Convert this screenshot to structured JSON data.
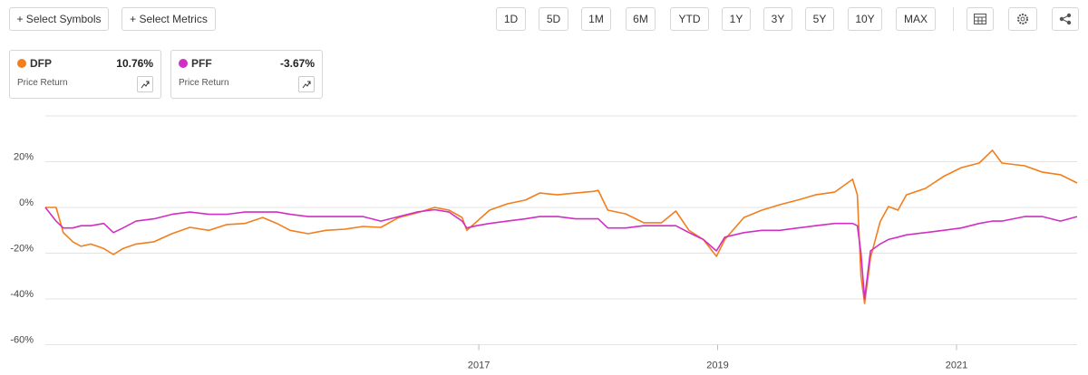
{
  "toolbar": {
    "left": [
      "+ Select Symbols",
      "+ Select Metrics"
    ],
    "ranges": [
      "1D",
      "5D",
      "1M",
      "6M",
      "YTD",
      "1Y",
      "3Y",
      "5Y",
      "10Y",
      "MAX"
    ]
  },
  "symbols": [
    {
      "return": "10.76%",
      "metric": "Price Return"
    },
    {
      "return": "-3.67%",
      "metric": "Price Return"
    }
  ],
  "chart_data": {
    "type": "line",
    "x": [
      2013.37,
      2013.46,
      2013.52,
      2013.6,
      2013.67,
      2013.75,
      2013.86,
      2013.94,
      2014.02,
      2014.13,
      2014.28,
      2014.43,
      2014.58,
      2014.74,
      2014.89,
      2015.04,
      2015.19,
      2015.31,
      2015.42,
      2015.57,
      2015.72,
      2015.88,
      2016.03,
      2016.18,
      2016.33,
      2016.48,
      2016.63,
      2016.75,
      2016.86,
      2016.9,
      2016.98,
      2017.09,
      2017.24,
      2017.39,
      2017.51,
      2017.66,
      2017.81,
      2017.96,
      2018.0,
      2018.08,
      2018.23,
      2018.38,
      2018.53,
      2018.65,
      2018.76,
      2018.88,
      2018.99,
      2019.06,
      2019.22,
      2019.37,
      2019.52,
      2019.67,
      2019.82,
      2019.98,
      2020.13,
      2020.17,
      2020.2,
      2020.23,
      2020.28,
      2020.36,
      2020.43,
      2020.51,
      2020.58,
      2020.74,
      2020.89,
      2021.04,
      2021.19,
      2021.3,
      2021.38,
      2021.57,
      2021.72,
      2021.87,
      2022.01
    ],
    "series": [
      {
        "name": "DFP",
        "color": "#f27e1d",
        "values": [
          0,
          0,
          -11,
          -15,
          -17,
          -16,
          -18,
          -20.6,
          -18,
          -16,
          -15,
          -11.5,
          -8.7,
          -10,
          -7.5,
          -7,
          -4.4,
          -7,
          -10,
          -11.5,
          -10,
          -9.5,
          -8.3,
          -8.7,
          -4.4,
          -2.4,
          0,
          -1.2,
          -4.4,
          -10,
          -6.3,
          -1.2,
          1.6,
          3.2,
          6.3,
          5.5,
          6.3,
          7,
          7.5,
          -1.2,
          -2.8,
          -6.7,
          -6.7,
          -1.6,
          -10,
          -14,
          -21.4,
          -14,
          -4.4,
          -1.2,
          1.2,
          3.2,
          5.5,
          6.7,
          12.3,
          5.5,
          -30,
          -42,
          -22,
          -6.3,
          0.4,
          -1.2,
          5.5,
          8.3,
          13.5,
          17.4,
          19.4,
          25,
          19.4,
          18.2,
          15.4,
          14.3,
          10.7
        ]
      },
      {
        "name": "PFF",
        "color": "#d12fc4",
        "values": [
          0,
          -6,
          -9,
          -9,
          -8,
          -8,
          -7,
          -11,
          -9,
          -6,
          -5,
          -3,
          -2,
          -3,
          -3,
          -2,
          -2,
          -2,
          -3,
          -4,
          -4,
          -4,
          -4,
          -6,
          -4,
          -2,
          -1,
          -2,
          -6,
          -9,
          -8,
          -7,
          -6,
          -5,
          -4,
          -4,
          -5,
          -5,
          -5,
          -9,
          -9,
          -8,
          -8,
          -8,
          -11,
          -14,
          -19,
          -13,
          -11,
          -10,
          -10,
          -9,
          -8,
          -7,
          -7,
          -8,
          -20,
          -40,
          -19,
          -16,
          -14,
          -13,
          -12,
          -11,
          -10,
          -9,
          -7,
          -6,
          -6,
          -4,
          -4,
          -6,
          -4
        ]
      }
    ],
    "xlim": [
      2013.37,
      2022.01
    ],
    "xticks": [
      2017,
      2019,
      2021
    ],
    "ylim": [
      -60,
      40
    ],
    "yticks": [
      {
        "value": 20,
        "label": "20%"
      },
      {
        "value": 0,
        "label": "0%"
      },
      {
        "value": -20,
        "label": "-20%"
      },
      {
        "value": -40,
        "label": "-40%"
      },
      {
        "value": -60,
        "label": "-60%"
      }
    ],
    "grid": true
  }
}
